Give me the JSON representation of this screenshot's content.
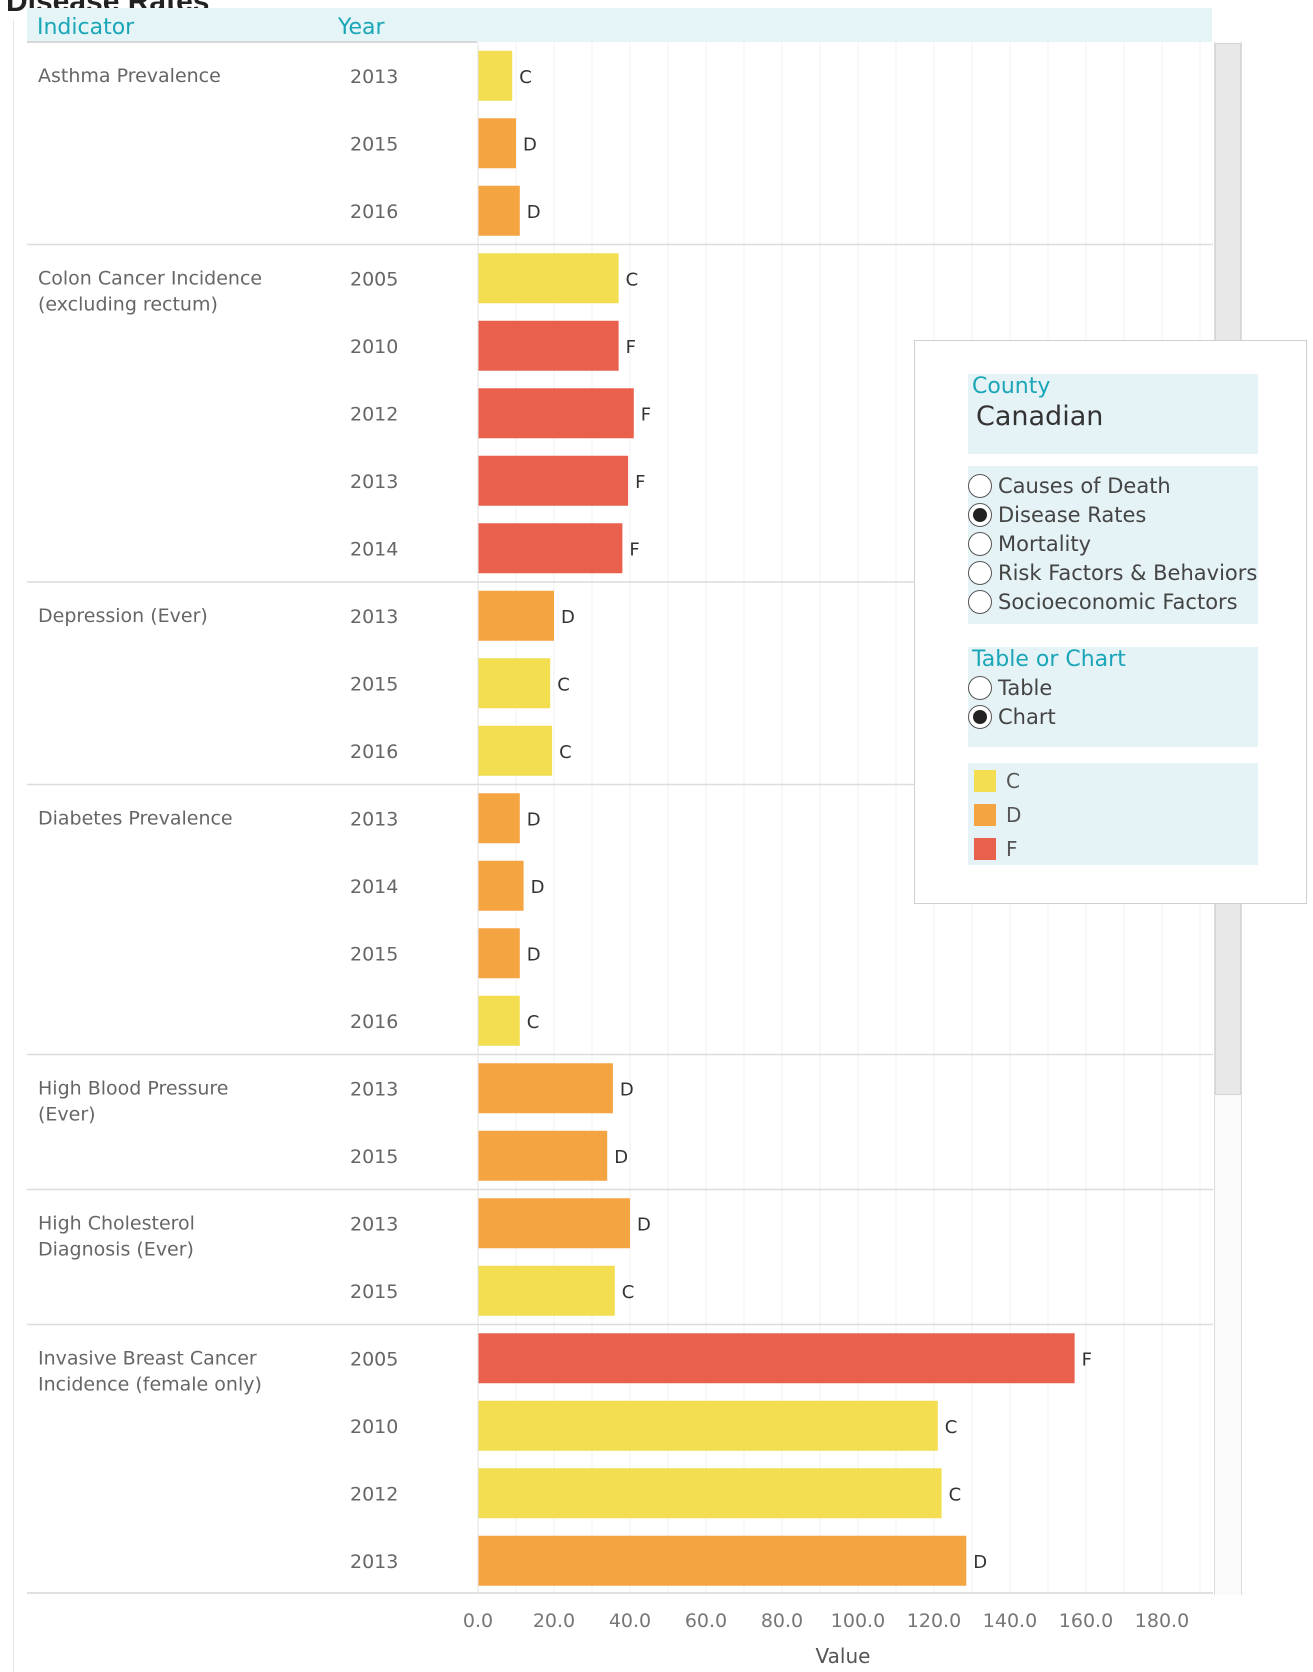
{
  "page": {
    "title": "Disease Rates"
  },
  "header": {
    "indicator_label": "Indicator",
    "year_label": "Year"
  },
  "colors": {
    "C": "#f2de50",
    "D": "#f5a442",
    "F": "#e9604d"
  },
  "chart_data": {
    "type": "bar",
    "orientation": "horizontal",
    "xlabel": "Value",
    "xlim": [
      0,
      190
    ],
    "x_ticks": [
      "0.0",
      "20.0",
      "40.0",
      "60.0",
      "80.0",
      "100.0",
      "120.0",
      "140.0",
      "160.0",
      "180.0"
    ],
    "groups": [
      {
        "indicator": "Asthma Prevalence",
        "rows": [
          {
            "year": "2013",
            "value": 9,
            "grade": "C"
          },
          {
            "year": "2015",
            "value": 10,
            "grade": "D"
          },
          {
            "year": "2016",
            "value": 11,
            "grade": "D"
          }
        ]
      },
      {
        "indicator": "Colon Cancer Incidence (excluding rectum)",
        "rows": [
          {
            "year": "2005",
            "value": 37,
            "grade": "C"
          },
          {
            "year": "2010",
            "value": 37,
            "grade": "F"
          },
          {
            "year": "2012",
            "value": 41,
            "grade": "F"
          },
          {
            "year": "2013",
            "value": 39.5,
            "grade": "F"
          },
          {
            "year": "2014",
            "value": 38,
            "grade": "F"
          }
        ]
      },
      {
        "indicator": "Depression (Ever)",
        "rows": [
          {
            "year": "2013",
            "value": 20,
            "grade": "D"
          },
          {
            "year": "2015",
            "value": 19,
            "grade": "C"
          },
          {
            "year": "2016",
            "value": 19.5,
            "grade": "C"
          }
        ]
      },
      {
        "indicator": "Diabetes Prevalence",
        "rows": [
          {
            "year": "2013",
            "value": 11,
            "grade": "D"
          },
          {
            "year": "2014",
            "value": 12,
            "grade": "D"
          },
          {
            "year": "2015",
            "value": 11,
            "grade": "D"
          },
          {
            "year": "2016",
            "value": 11,
            "grade": "C"
          }
        ]
      },
      {
        "indicator": "High Blood Pressure (Ever)",
        "rows": [
          {
            "year": "2013",
            "value": 35.5,
            "grade": "D"
          },
          {
            "year": "2015",
            "value": 34,
            "grade": "D"
          }
        ]
      },
      {
        "indicator": "High Cholesterol Diagnosis (Ever)",
        "rows": [
          {
            "year": "2013",
            "value": 40,
            "grade": "D"
          },
          {
            "year": "2015",
            "value": 36,
            "grade": "C"
          }
        ]
      },
      {
        "indicator": "Invasive Breast Cancer Incidence (female only)",
        "rows": [
          {
            "year": "2005",
            "value": 157,
            "grade": "F"
          },
          {
            "year": "2010",
            "value": 121,
            "grade": "C"
          },
          {
            "year": "2012",
            "value": 122,
            "grade": "C"
          },
          {
            "year": "2013",
            "value": 128.5,
            "grade": "D"
          }
        ]
      }
    ]
  },
  "panel": {
    "county": {
      "label": "County",
      "value": "Canadian"
    },
    "category": {
      "options": [
        {
          "label": "Causes of Death",
          "selected": false
        },
        {
          "label": "Disease Rates",
          "selected": true
        },
        {
          "label": "Mortality",
          "selected": false
        },
        {
          "label": "Risk Factors & Behaviors",
          "selected": false
        },
        {
          "label": "Socioeconomic Factors",
          "selected": false
        }
      ]
    },
    "view": {
      "label": "Table or Chart",
      "options": [
        {
          "label": "Table",
          "selected": false
        },
        {
          "label": "Chart",
          "selected": true
        }
      ]
    },
    "legend": {
      "items": [
        "C",
        "D",
        "F"
      ]
    }
  }
}
